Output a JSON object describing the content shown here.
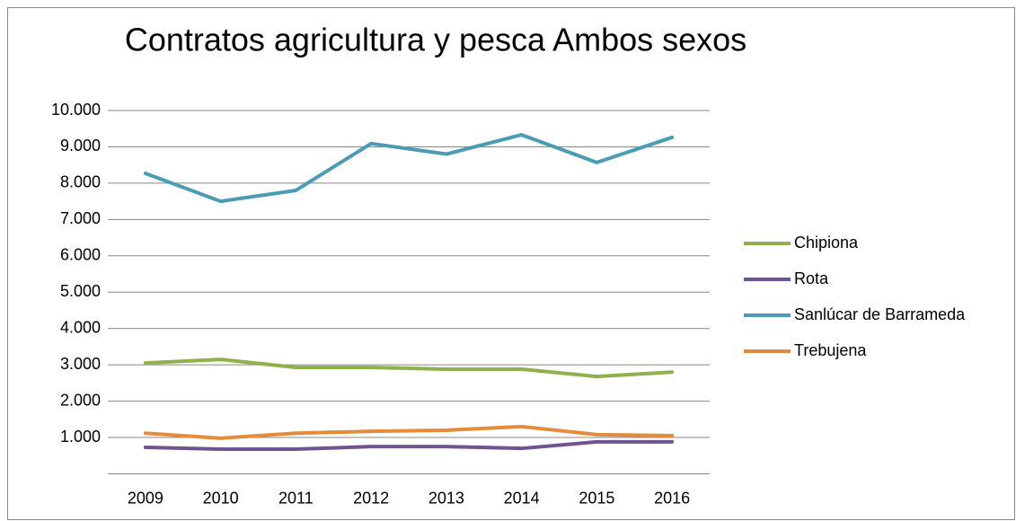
{
  "chart_data": {
    "type": "line",
    "title": "Contratos agricultura y pesca Ambos sexos",
    "categories": [
      "2009",
      "2010",
      "2011",
      "2012",
      "2013",
      "2014",
      "2015",
      "2016"
    ],
    "series": [
      {
        "name": "Chipiona",
        "color": "#8fb04a",
        "values": [
          3050,
          3150,
          2930,
          2930,
          2880,
          2880,
          2680,
          2800
        ]
      },
      {
        "name": "Rota",
        "color": "#6f548f",
        "values": [
          730,
          680,
          680,
          750,
          750,
          700,
          880,
          880
        ]
      },
      {
        "name": "Sanlúcar de Barrameda",
        "color": "#4b9bb5",
        "values": [
          8270,
          7500,
          7800,
          9090,
          8800,
          9330,
          8570,
          9260
        ]
      },
      {
        "name": "Trebujena",
        "color": "#e58b3c",
        "values": [
          1120,
          980,
          1120,
          1170,
          1200,
          1300,
          1080,
          1050
        ]
      }
    ],
    "ylim": [
      0,
      10000
    ],
    "yticks": [
      {
        "value": 1000,
        "label": "1.000"
      },
      {
        "value": 2000,
        "label": "2.000"
      },
      {
        "value": 3000,
        "label": "3.000"
      },
      {
        "value": 4000,
        "label": "4.000"
      },
      {
        "value": 5000,
        "label": "5.000"
      },
      {
        "value": 6000,
        "label": "6.000"
      },
      {
        "value": 7000,
        "label": "7.000"
      },
      {
        "value": 8000,
        "label": "8.000"
      },
      {
        "value": 9000,
        "label": "9.000"
      },
      {
        "value": 10000,
        "label": "10.000"
      }
    ],
    "grid": true,
    "legend": "right"
  }
}
